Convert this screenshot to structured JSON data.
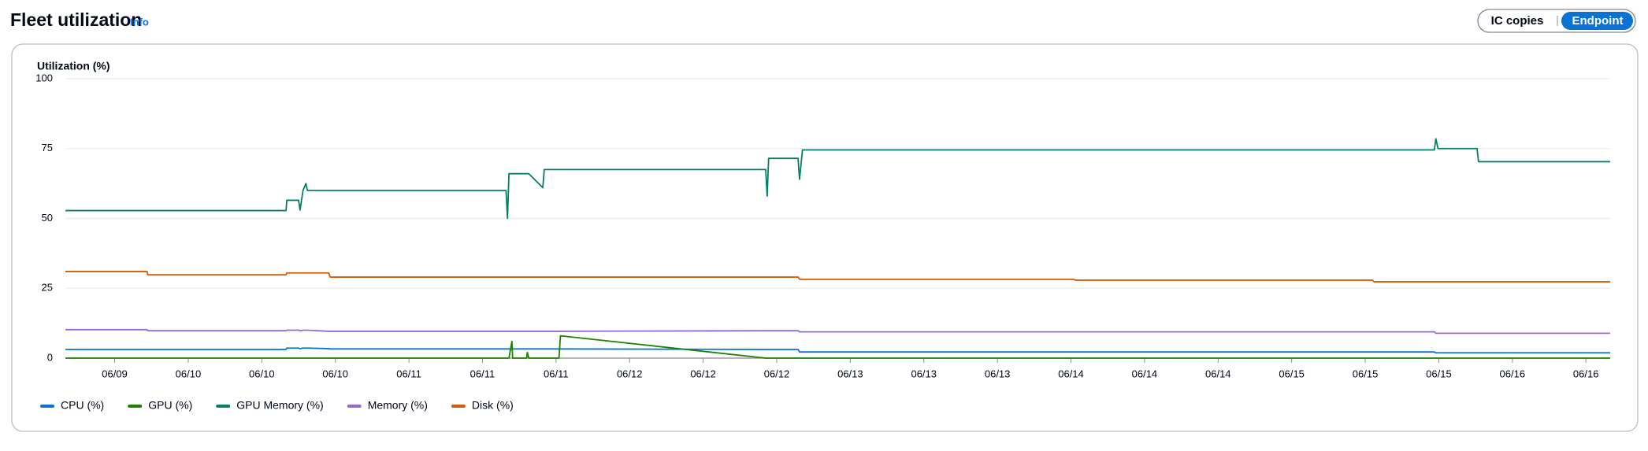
{
  "header": {
    "title": "Fleet utilization",
    "info": "Info"
  },
  "toggle": [
    "IC copies",
    "Endpoint"
  ],
  "chart_data": {
    "type": "line",
    "ylabel": "Utilization (%)",
    "x": [
      -0.67,
      0.44,
      0.45,
      2.33,
      2.34,
      2.5,
      2.52,
      2.56,
      2.6,
      2.62,
      2.91,
      2.93,
      5.32,
      5.34,
      5.36,
      5.4,
      5.41,
      5.6,
      5.61,
      5.63,
      5.82,
      5.84,
      6.03,
      6.04,
      6.06,
      8.85,
      8.87,
      8.89,
      9.29,
      9.31,
      9.35,
      13.04,
      13.06,
      17.1,
      17.12,
      17.94,
      17.96,
      17.99,
      18.52,
      18.54,
      20.33
    ],
    "xlim": [
      -0.67,
      20.33
    ],
    "xticks": [
      {
        "value": 0,
        "label": "06/09"
      },
      {
        "value": 1,
        "label": "06/10"
      },
      {
        "value": 2,
        "label": "06/10"
      },
      {
        "value": 3,
        "label": "06/10"
      },
      {
        "value": 4,
        "label": "06/11"
      },
      {
        "value": 5,
        "label": "06/11"
      },
      {
        "value": 6,
        "label": "06/11"
      },
      {
        "value": 7,
        "label": "06/12"
      },
      {
        "value": 8,
        "label": "06/12"
      },
      {
        "value": 9,
        "label": "06/12"
      },
      {
        "value": 10,
        "label": "06/13"
      },
      {
        "value": 11,
        "label": "06/13"
      },
      {
        "value": 12,
        "label": "06/13"
      },
      {
        "value": 13,
        "label": "06/14"
      },
      {
        "value": 14,
        "label": "06/14"
      },
      {
        "value": 15,
        "label": "06/14"
      },
      {
        "value": 16,
        "label": "06/15"
      },
      {
        "value": 17,
        "label": "06/15"
      },
      {
        "value": 18,
        "label": "06/15"
      },
      {
        "value": 19,
        "label": "06/16"
      },
      {
        "value": 20,
        "label": "06/16"
      }
    ],
    "ylim": [
      0,
      100
    ],
    "yticks": [
      0,
      25,
      50,
      75,
      100
    ],
    "grid": true,
    "series": [
      {
        "name": "CPU (%)",
        "color": "#0972d3",
        "values": [
          3.1,
          3.1,
          3.1,
          3.1,
          3.6,
          3.6,
          3.4,
          3.6,
          3.6,
          3.6,
          3.4,
          3.3,
          3.3,
          3.3,
          3.3,
          3.3,
          3.3,
          3.3,
          3.3,
          3.3,
          3.3,
          3.3,
          3.3,
          3.3,
          3.3,
          3.1,
          3.1,
          3.1,
          3.1,
          2.2,
          2.2,
          2.2,
          2.2,
          2.2,
          2.2,
          2.2,
          1.9,
          1.9,
          1.9,
          1.9,
          1.9
        ]
      },
      {
        "name": "GPU (%)",
        "color": "#1d8102",
        "values": [
          0,
          0,
          0,
          0,
          0,
          0,
          0,
          0,
          0,
          0,
          0,
          0,
          0,
          0,
          0,
          6,
          0,
          0,
          2,
          0,
          0,
          0,
          0,
          0,
          8,
          0,
          0,
          0,
          0,
          0,
          0,
          0,
          0,
          0,
          0,
          0,
          0,
          0,
          0,
          0,
          0
        ]
      },
      {
        "name": "GPU Memory (%)",
        "color": "#067f68",
        "values": [
          52.8,
          52.8,
          52.8,
          52.8,
          56.5,
          56.5,
          53,
          60,
          62.5,
          60,
          60,
          60,
          60,
          50,
          66,
          66,
          66,
          66,
          66,
          66,
          61,
          67.5,
          67.5,
          67.5,
          67.5,
          67.5,
          58,
          71.5,
          71.5,
          64,
          74.5,
          74.5,
          74.5,
          74.5,
          74.5,
          74.5,
          78.5,
          75,
          75,
          70.3,
          70.3
        ]
      },
      {
        "name": "Memory (%)",
        "color": "#9469d6",
        "values": [
          10.2,
          10.2,
          9.8,
          9.8,
          10,
          10,
          9.8,
          10,
          10,
          10,
          9.6,
          9.6,
          9.6,
          9.6,
          9.6,
          9.6,
          9.6,
          9.6,
          9.6,
          9.6,
          9.6,
          9.6,
          9.6,
          9.6,
          9.6,
          9.8,
          9.8,
          9.8,
          9.8,
          9.4,
          9.4,
          9.4,
          9.4,
          9.4,
          9.4,
          9.4,
          8.9,
          8.9,
          8.9,
          8.9,
          8.9
        ]
      },
      {
        "name": "Disk (%)",
        "color": "#d45b07",
        "values": [
          31,
          31,
          29.8,
          29.8,
          30.5,
          30.5,
          30.5,
          30.5,
          30.5,
          30.5,
          30.5,
          29,
          29,
          29,
          29,
          29,
          29,
          29,
          29,
          29,
          29,
          29,
          29,
          29,
          29,
          29,
          29,
          29,
          29,
          28.2,
          28.2,
          28.2,
          27.9,
          27.9,
          27.3,
          27.3,
          27.3,
          27.3,
          27.3,
          27.3,
          27.3
        ]
      }
    ]
  }
}
